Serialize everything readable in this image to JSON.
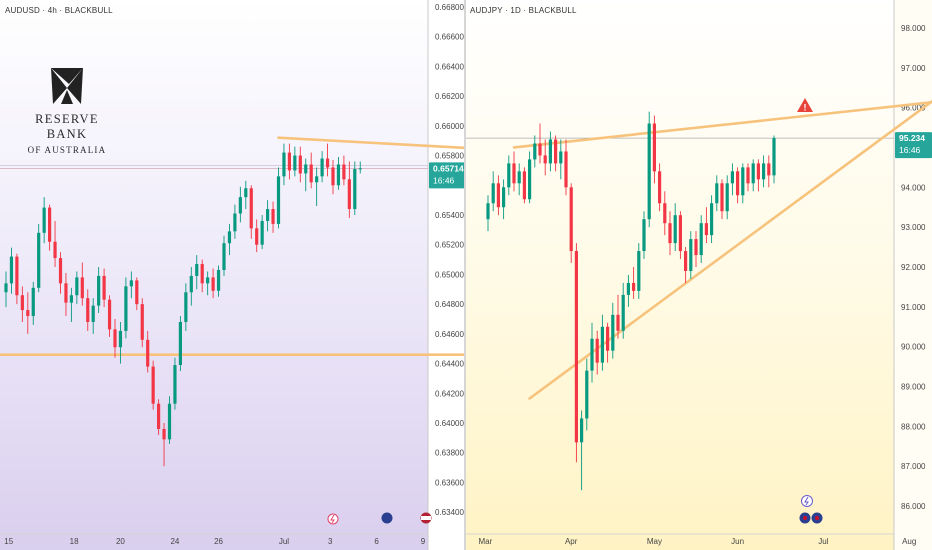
{
  "charts": [
    {
      "id": "left",
      "title": "AUDUSD · 4h · BLACKBULL",
      "y_ticks": [
        "0.66800",
        "0.66600",
        "0.66400",
        "0.66200",
        "0.66000",
        "0.65800",
        "0.65400",
        "0.65200",
        "0.65000",
        "0.64800",
        "0.64600",
        "0.64400",
        "0.64200",
        "0.64000",
        "0.63800",
        "0.63600",
        "0.63400"
      ],
      "y_tick_values": [
        0.668,
        0.666,
        0.664,
        0.662,
        0.66,
        0.658,
        0.654,
        0.652,
        0.65,
        0.648,
        0.646,
        0.644,
        0.642,
        0.64,
        0.638,
        0.636,
        0.634
      ],
      "x_ticks": [
        "15",
        "18",
        "20",
        "24",
        "26",
        "Jul",
        "3",
        "6",
        "9"
      ],
      "x_tick_index": [
        0.5,
        12.5,
        21,
        31,
        39,
        51,
        59.5,
        68,
        76.5
      ],
      "price_label": "0.65714",
      "countdown_label": "16:46",
      "current_price": 0.65714,
      "colors": {
        "up": "#089981",
        "down": "#f23645",
        "trendline": "#f7c37c",
        "price_tag": "#26a69a"
      }
    },
    {
      "id": "right",
      "title": "AUDJPY · 1D · BLACKBULL",
      "y_ticks": [
        "98.000",
        "97.000",
        "96.000",
        "94.000",
        "93.000",
        "92.000",
        "91.000",
        "90.000",
        "89.000",
        "88.000",
        "87.000",
        "86.000"
      ],
      "y_tick_values": [
        98,
        97,
        96,
        94,
        93,
        92,
        91,
        90,
        89,
        88,
        87,
        86
      ],
      "x_ticks": [
        "Mar",
        "Apr",
        "May",
        "Jun",
        "Jul",
        "Aug"
      ],
      "x_tick_index": [
        -0.5,
        16,
        32,
        48,
        64.5,
        81
      ],
      "price_label": "95.234",
      "countdown_label": "16:46",
      "current_price": 95.234,
      "colors": {
        "up": "#089981",
        "down": "#f23645",
        "trendline": "#f7c37c",
        "price_tag": "#26a69a",
        "warning": "#e8433a"
      }
    }
  ],
  "logo": {
    "name": "RESERVE BANK",
    "sub": "OF AUSTRALIA"
  },
  "chart_data": [
    {
      "type": "candlestick",
      "title": "AUDUSD · 4h · BLACKBULL",
      "ylim": [
        0.6328,
        0.6682
      ],
      "ohlc": [
        [
          0.6488,
          0.6502,
          0.6478,
          0.6494
        ],
        [
          0.6494,
          0.6518,
          0.6487,
          0.6512
        ],
        [
          0.6512,
          0.6514,
          0.648,
          0.6486
        ],
        [
          0.6486,
          0.6492,
          0.6468,
          0.6476
        ],
        [
          0.6476,
          0.6488,
          0.646,
          0.6472
        ],
        [
          0.6472,
          0.6495,
          0.6466,
          0.6491
        ],
        [
          0.6491,
          0.6534,
          0.6488,
          0.6528
        ],
        [
          0.6528,
          0.6552,
          0.6521,
          0.6545
        ],
        [
          0.6545,
          0.6547,
          0.6516,
          0.6522
        ],
        [
          0.6522,
          0.6536,
          0.6505,
          0.6511
        ],
        [
          0.6511,
          0.6515,
          0.6487,
          0.6494
        ],
        [
          0.6494,
          0.6501,
          0.6472,
          0.6481
        ],
        [
          0.6481,
          0.6491,
          0.6468,
          0.6486
        ],
        [
          0.6486,
          0.6502,
          0.648,
          0.6498
        ],
        [
          0.6498,
          0.6508,
          0.6479,
          0.6484
        ],
        [
          0.6484,
          0.649,
          0.6462,
          0.6468
        ],
        [
          0.6468,
          0.6484,
          0.646,
          0.6479
        ],
        [
          0.6479,
          0.6505,
          0.6474,
          0.6499
        ],
        [
          0.6499,
          0.6504,
          0.6478,
          0.6483
        ],
        [
          0.6483,
          0.6486,
          0.6458,
          0.6463
        ],
        [
          0.6463,
          0.647,
          0.6444,
          0.6451
        ],
        [
          0.6451,
          0.6468,
          0.644,
          0.6462
        ],
        [
          0.6462,
          0.6498,
          0.6457,
          0.6492
        ],
        [
          0.6492,
          0.6502,
          0.6484,
          0.6496
        ],
        [
          0.6496,
          0.6498,
          0.6476,
          0.648
        ],
        [
          0.648,
          0.6484,
          0.6451,
          0.6456
        ],
        [
          0.6456,
          0.6462,
          0.6434,
          0.6438
        ],
        [
          0.6438,
          0.6442,
          0.6409,
          0.6413
        ],
        [
          0.6413,
          0.6416,
          0.6392,
          0.6396
        ],
        [
          0.6396,
          0.64,
          0.6371,
          0.6389
        ],
        [
          0.6389,
          0.6418,
          0.6386,
          0.6413
        ],
        [
          0.6413,
          0.6444,
          0.6409,
          0.6439
        ],
        [
          0.6439,
          0.6472,
          0.6435,
          0.6468
        ],
        [
          0.6468,
          0.6494,
          0.6462,
          0.6488
        ],
        [
          0.6488,
          0.6505,
          0.6479,
          0.6499
        ],
        [
          0.6499,
          0.6513,
          0.649,
          0.6507
        ],
        [
          0.6507,
          0.651,
          0.6488,
          0.6494
        ],
        [
          0.6494,
          0.6502,
          0.6486,
          0.6498
        ],
        [
          0.6498,
          0.6504,
          0.6484,
          0.6489
        ],
        [
          0.6489,
          0.6506,
          0.6485,
          0.6503
        ],
        [
          0.6503,
          0.6526,
          0.6499,
          0.6521
        ],
        [
          0.6521,
          0.6534,
          0.6513,
          0.6529
        ],
        [
          0.6529,
          0.6547,
          0.6524,
          0.6541
        ],
        [
          0.6541,
          0.6559,
          0.6535,
          0.6552
        ],
        [
          0.6552,
          0.6563,
          0.6544,
          0.6558
        ],
        [
          0.6558,
          0.656,
          0.6524,
          0.6531
        ],
        [
          0.6531,
          0.6537,
          0.6515,
          0.652
        ],
        [
          0.652,
          0.654,
          0.6517,
          0.6536
        ],
        [
          0.6536,
          0.655,
          0.6529,
          0.6544
        ],
        [
          0.6544,
          0.6549,
          0.6528,
          0.6534
        ],
        [
          0.6534,
          0.6572,
          0.6531,
          0.6566
        ],
        [
          0.6566,
          0.6588,
          0.656,
          0.6582
        ],
        [
          0.6582,
          0.6588,
          0.6564,
          0.657
        ],
        [
          0.657,
          0.6586,
          0.6566,
          0.658
        ],
        [
          0.658,
          0.6586,
          0.6562,
          0.6568
        ],
        [
          0.6568,
          0.6578,
          0.6556,
          0.6574
        ],
        [
          0.6574,
          0.6582,
          0.6558,
          0.6562
        ],
        [
          0.6562,
          0.6572,
          0.6546,
          0.6566
        ],
        [
          0.6566,
          0.6583,
          0.6562,
          0.6578
        ],
        [
          0.6578,
          0.6588,
          0.6566,
          0.6572
        ],
        [
          0.6572,
          0.6577,
          0.6554,
          0.656
        ],
        [
          0.656,
          0.6579,
          0.6557,
          0.6574
        ],
        [
          0.6574,
          0.658,
          0.656,
          0.6564
        ],
        [
          0.6564,
          0.6576,
          0.6538,
          0.6544
        ],
        [
          0.6544,
          0.6576,
          0.654,
          0.6571
        ],
        [
          0.6571,
          0.6576,
          0.6568,
          0.65714
        ]
      ],
      "trendlines": [
        {
          "from": [
            50,
            0.6592
          ],
          "to": [
            110,
            0.658
          ]
        },
        {
          "from": [
            -1,
            0.6446
          ],
          "to": [
            110,
            0.6446
          ]
        }
      ]
    },
    {
      "type": "candlestick",
      "title": "AUDJPY · 1D · BLACKBULL",
      "ylim": [
        85.4,
        98.6
      ],
      "ohlc": [
        [
          93.2,
          93.8,
          92.9,
          93.6
        ],
        [
          93.6,
          94.4,
          93.4,
          94.1
        ],
        [
          94.1,
          94.3,
          93.3,
          93.5
        ],
        [
          93.5,
          94.2,
          93.2,
          94.0
        ],
        [
          94.0,
          94.8,
          93.8,
          94.6
        ],
        [
          94.6,
          94.9,
          93.9,
          94.1
        ],
        [
          94.1,
          94.6,
          93.8,
          94.4
        ],
        [
          94.4,
          94.5,
          93.6,
          93.7
        ],
        [
          93.7,
          94.9,
          93.6,
          94.7
        ],
        [
          94.7,
          95.3,
          94.5,
          95.1
        ],
        [
          95.1,
          95.6,
          94.6,
          94.8
        ],
        [
          94.8,
          95.2,
          94.3,
          94.6
        ],
        [
          94.6,
          95.4,
          94.4,
          95.2
        ],
        [
          95.2,
          95.3,
          94.4,
          94.6
        ],
        [
          94.6,
          95.2,
          94.2,
          94.9
        ],
        [
          94.9,
          95.2,
          93.8,
          94.0
        ],
        [
          94.0,
          94.1,
          92.1,
          92.4
        ],
        [
          92.4,
          92.6,
          87.1,
          87.6
        ],
        [
          87.6,
          88.4,
          86.4,
          88.2
        ],
        [
          88.2,
          89.7,
          87.9,
          89.4
        ],
        [
          89.4,
          90.6,
          89.1,
          90.2
        ],
        [
          90.2,
          90.4,
          89.3,
          89.6
        ],
        [
          89.6,
          90.8,
          89.4,
          90.5
        ],
        [
          90.5,
          90.6,
          89.6,
          89.9
        ],
        [
          89.9,
          91.1,
          89.7,
          90.8
        ],
        [
          90.8,
          91.3,
          90.2,
          90.4
        ],
        [
          90.4,
          91.6,
          90.2,
          91.3
        ],
        [
          91.3,
          91.8,
          91.0,
          91.6
        ],
        [
          91.6,
          92.0,
          91.2,
          91.4
        ],
        [
          91.4,
          92.6,
          91.2,
          92.4
        ],
        [
          92.4,
          93.4,
          92.2,
          93.2
        ],
        [
          93.2,
          95.9,
          93.0,
          95.6
        ],
        [
          95.6,
          95.8,
          94.1,
          94.4
        ],
        [
          94.4,
          94.6,
          93.4,
          93.6
        ],
        [
          93.6,
          93.9,
          92.8,
          93.1
        ],
        [
          93.1,
          93.4,
          92.3,
          92.6
        ],
        [
          92.6,
          93.6,
          92.4,
          93.3
        ],
        [
          93.3,
          93.4,
          92.2,
          92.4
        ],
        [
          92.4,
          92.5,
          91.6,
          91.9
        ],
        [
          91.9,
          92.9,
          91.7,
          92.7
        ],
        [
          92.7,
          92.9,
          92.0,
          92.3
        ],
        [
          92.3,
          93.3,
          92.1,
          93.1
        ],
        [
          93.1,
          93.5,
          92.6,
          92.8
        ],
        [
          92.8,
          93.8,
          92.6,
          93.6
        ],
        [
          93.6,
          94.3,
          93.4,
          94.1
        ],
        [
          94.1,
          94.2,
          93.2,
          93.4
        ],
        [
          93.4,
          94.3,
          93.2,
          94.1
        ],
        [
          94.1,
          94.6,
          93.8,
          94.4
        ],
        [
          94.4,
          94.5,
          93.6,
          93.8
        ],
        [
          93.8,
          94.6,
          93.6,
          94.5
        ],
        [
          94.5,
          94.6,
          93.9,
          94.1
        ],
        [
          94.1,
          94.7,
          93.9,
          94.6
        ],
        [
          94.6,
          94.7,
          93.9,
          94.2
        ],
        [
          94.2,
          94.8,
          94.0,
          94.6
        ],
        [
          94.6,
          94.8,
          94.0,
          94.3
        ],
        [
          94.3,
          95.3,
          94.1,
          95.234
        ]
      ],
      "trendlines": [
        {
          "from": [
            5,
            95.0
          ],
          "to": [
            90,
            96.2
          ]
        },
        {
          "from": [
            8,
            88.7
          ],
          "to": [
            90,
            96.6
          ]
        }
      ]
    }
  ]
}
